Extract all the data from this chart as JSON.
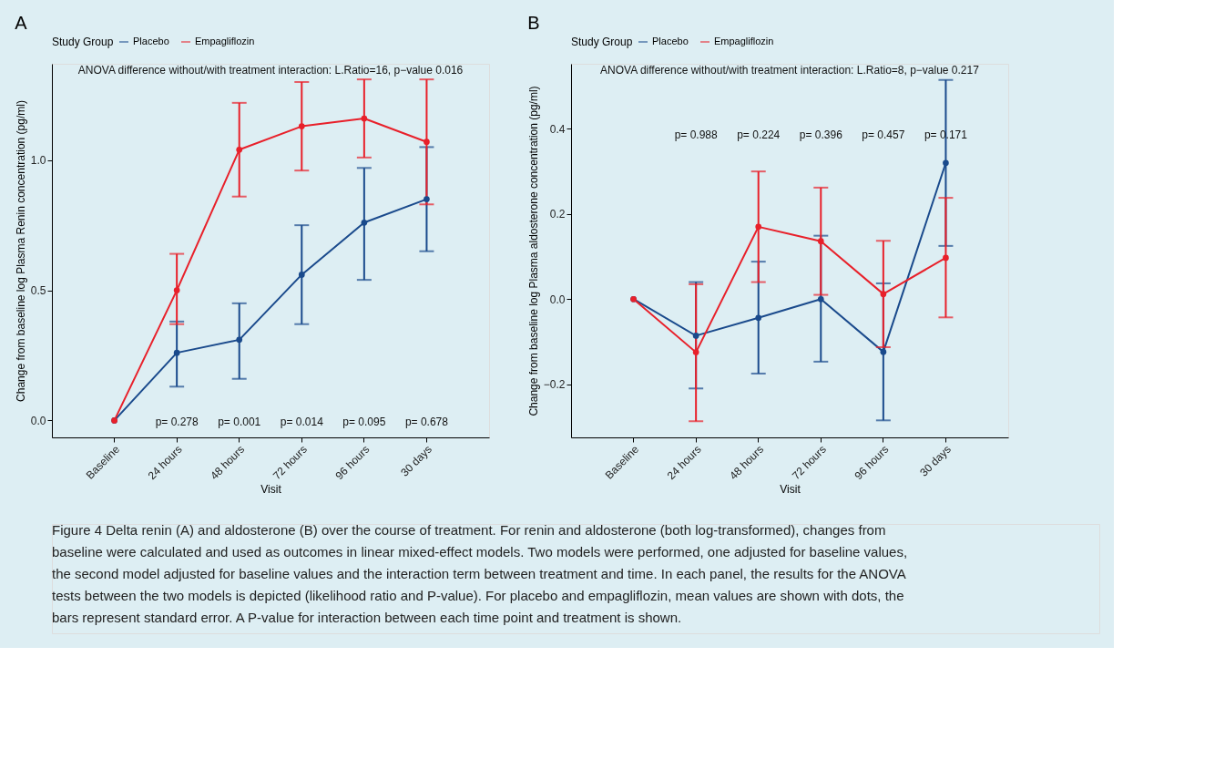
{
  "chart_data": [
    {
      "type": "line",
      "title": "A",
      "xlabel": "Visit",
      "ylabel": "Change from baseline log Plasma Renin concentration (pg/ml)",
      "legend_title": "Study Group",
      "legend": "top",
      "grid": false,
      "marker": "circle",
      "categories": [
        "Baseline",
        "24 hours",
        "48 hours",
        "72 hours",
        "96 hours",
        "30 days"
      ],
      "ylim": [
        -0.065,
        1.37
      ],
      "yticks": [
        {
          "value": 0,
          "label": "0.0"
        },
        {
          "value": 0.5,
          "label": "0.5"
        },
        {
          "value": 1,
          "label": "1.0"
        }
      ],
      "series": [
        {
          "name": "Placebo",
          "color": "#1a4a8c",
          "values": [
            0,
            0.26,
            0.31,
            0.56,
            0.76,
            0.85
          ],
          "errors": [
            null,
            [
              0.13,
              0.38
            ],
            [
              0.16,
              0.45
            ],
            [
              0.37,
              0.75
            ],
            [
              0.54,
              0.97
            ],
            [
              0.65,
              1.05
            ]
          ]
        },
        {
          "name": "Empagliflozin",
          "color": "#e8202a",
          "values": [
            0,
            0.5,
            1.04,
            1.13,
            1.16,
            1.07
          ],
          "errors": [
            null,
            [
              0.37,
              0.64
            ],
            [
              0.86,
              1.22
            ],
            [
              0.96,
              1.3
            ],
            [
              1.01,
              1.31
            ],
            [
              0.83,
              1.31
            ]
          ]
        }
      ],
      "annotations": [
        "ANOVA difference without/with treatment interaction: L.Ratio=16, p−value 0.016",
        "p= 0.278",
        "p= 0.001",
        "p= 0.014",
        "p= 0.095",
        "p= 0.678",
        "Figure 4 Delta renin (A) and aldosterone (B) over the course of treatment. For renin and aldosterone (both log-transformed), changes from baseline were calculated and used as outcomes in linear mixed-effect models. Two models were performed, one adjusted for baseline values, the second model adjusted for baseline values and the interaction term between treatment and time. In each panel, the results for the ANOVA tests between the two models is depicted (likelihood ratio and P-value). For placebo and empagliflozin, mean values are shown with dots, the bars represent standard error. A P-value for interaction between each time point and treatment is shown."
      ]
    },
    {
      "type": "line",
      "title": "B",
      "xlabel": "Visit",
      "ylabel": "Change from baseline log Plasma aldosterone concentration (pg/ml)",
      "legend_title": "Study Group",
      "legend": "top",
      "grid": false,
      "marker": "circle",
      "categories": [
        "Baseline",
        "24 hours",
        "48 hours",
        "72 hours",
        "96 hours",
        "30 days"
      ],
      "ylim": [
        -0.325,
        0.553
      ],
      "yticks": [
        {
          "value": -0.2,
          "label": "−0.2"
        },
        {
          "value": 0,
          "label": "0.0"
        },
        {
          "value": 0.2,
          "label": "0.2"
        },
        {
          "value": 0.4,
          "label": "0.4"
        }
      ],
      "series": [
        {
          "name": "Placebo",
          "color": "#1a4a8c",
          "values": [
            0,
            -0.086,
            -0.044,
            0,
            -0.124,
            0.32
          ],
          "errors": [
            null,
            [
              -0.21,
              0.04
            ],
            [
              -0.175,
              0.088
            ],
            [
              -0.147,
              0.149
            ],
            [
              -0.285,
              0.037
            ],
            [
              0.125,
              0.515
            ]
          ]
        },
        {
          "name": "Empagliflozin",
          "color": "#e8202a",
          "values": [
            0,
            -0.125,
            0.17,
            0.136,
            0.012,
            0.097
          ],
          "errors": [
            null,
            [
              -0.287,
              0.035
            ],
            [
              0.04,
              0.3
            ],
            [
              0.01,
              0.262
            ],
            [
              -0.113,
              0.137
            ],
            [
              -0.043,
              0.238
            ]
          ]
        }
      ],
      "annotations": [
        "ANOVA difference without/with treatment interaction: L.Ratio=8, p−value 0.217",
        "p= 0.988",
        "p= 0.224",
        "p= 0.396",
        "p= 0.457",
        "p= 0.171"
      ]
    }
  ]
}
